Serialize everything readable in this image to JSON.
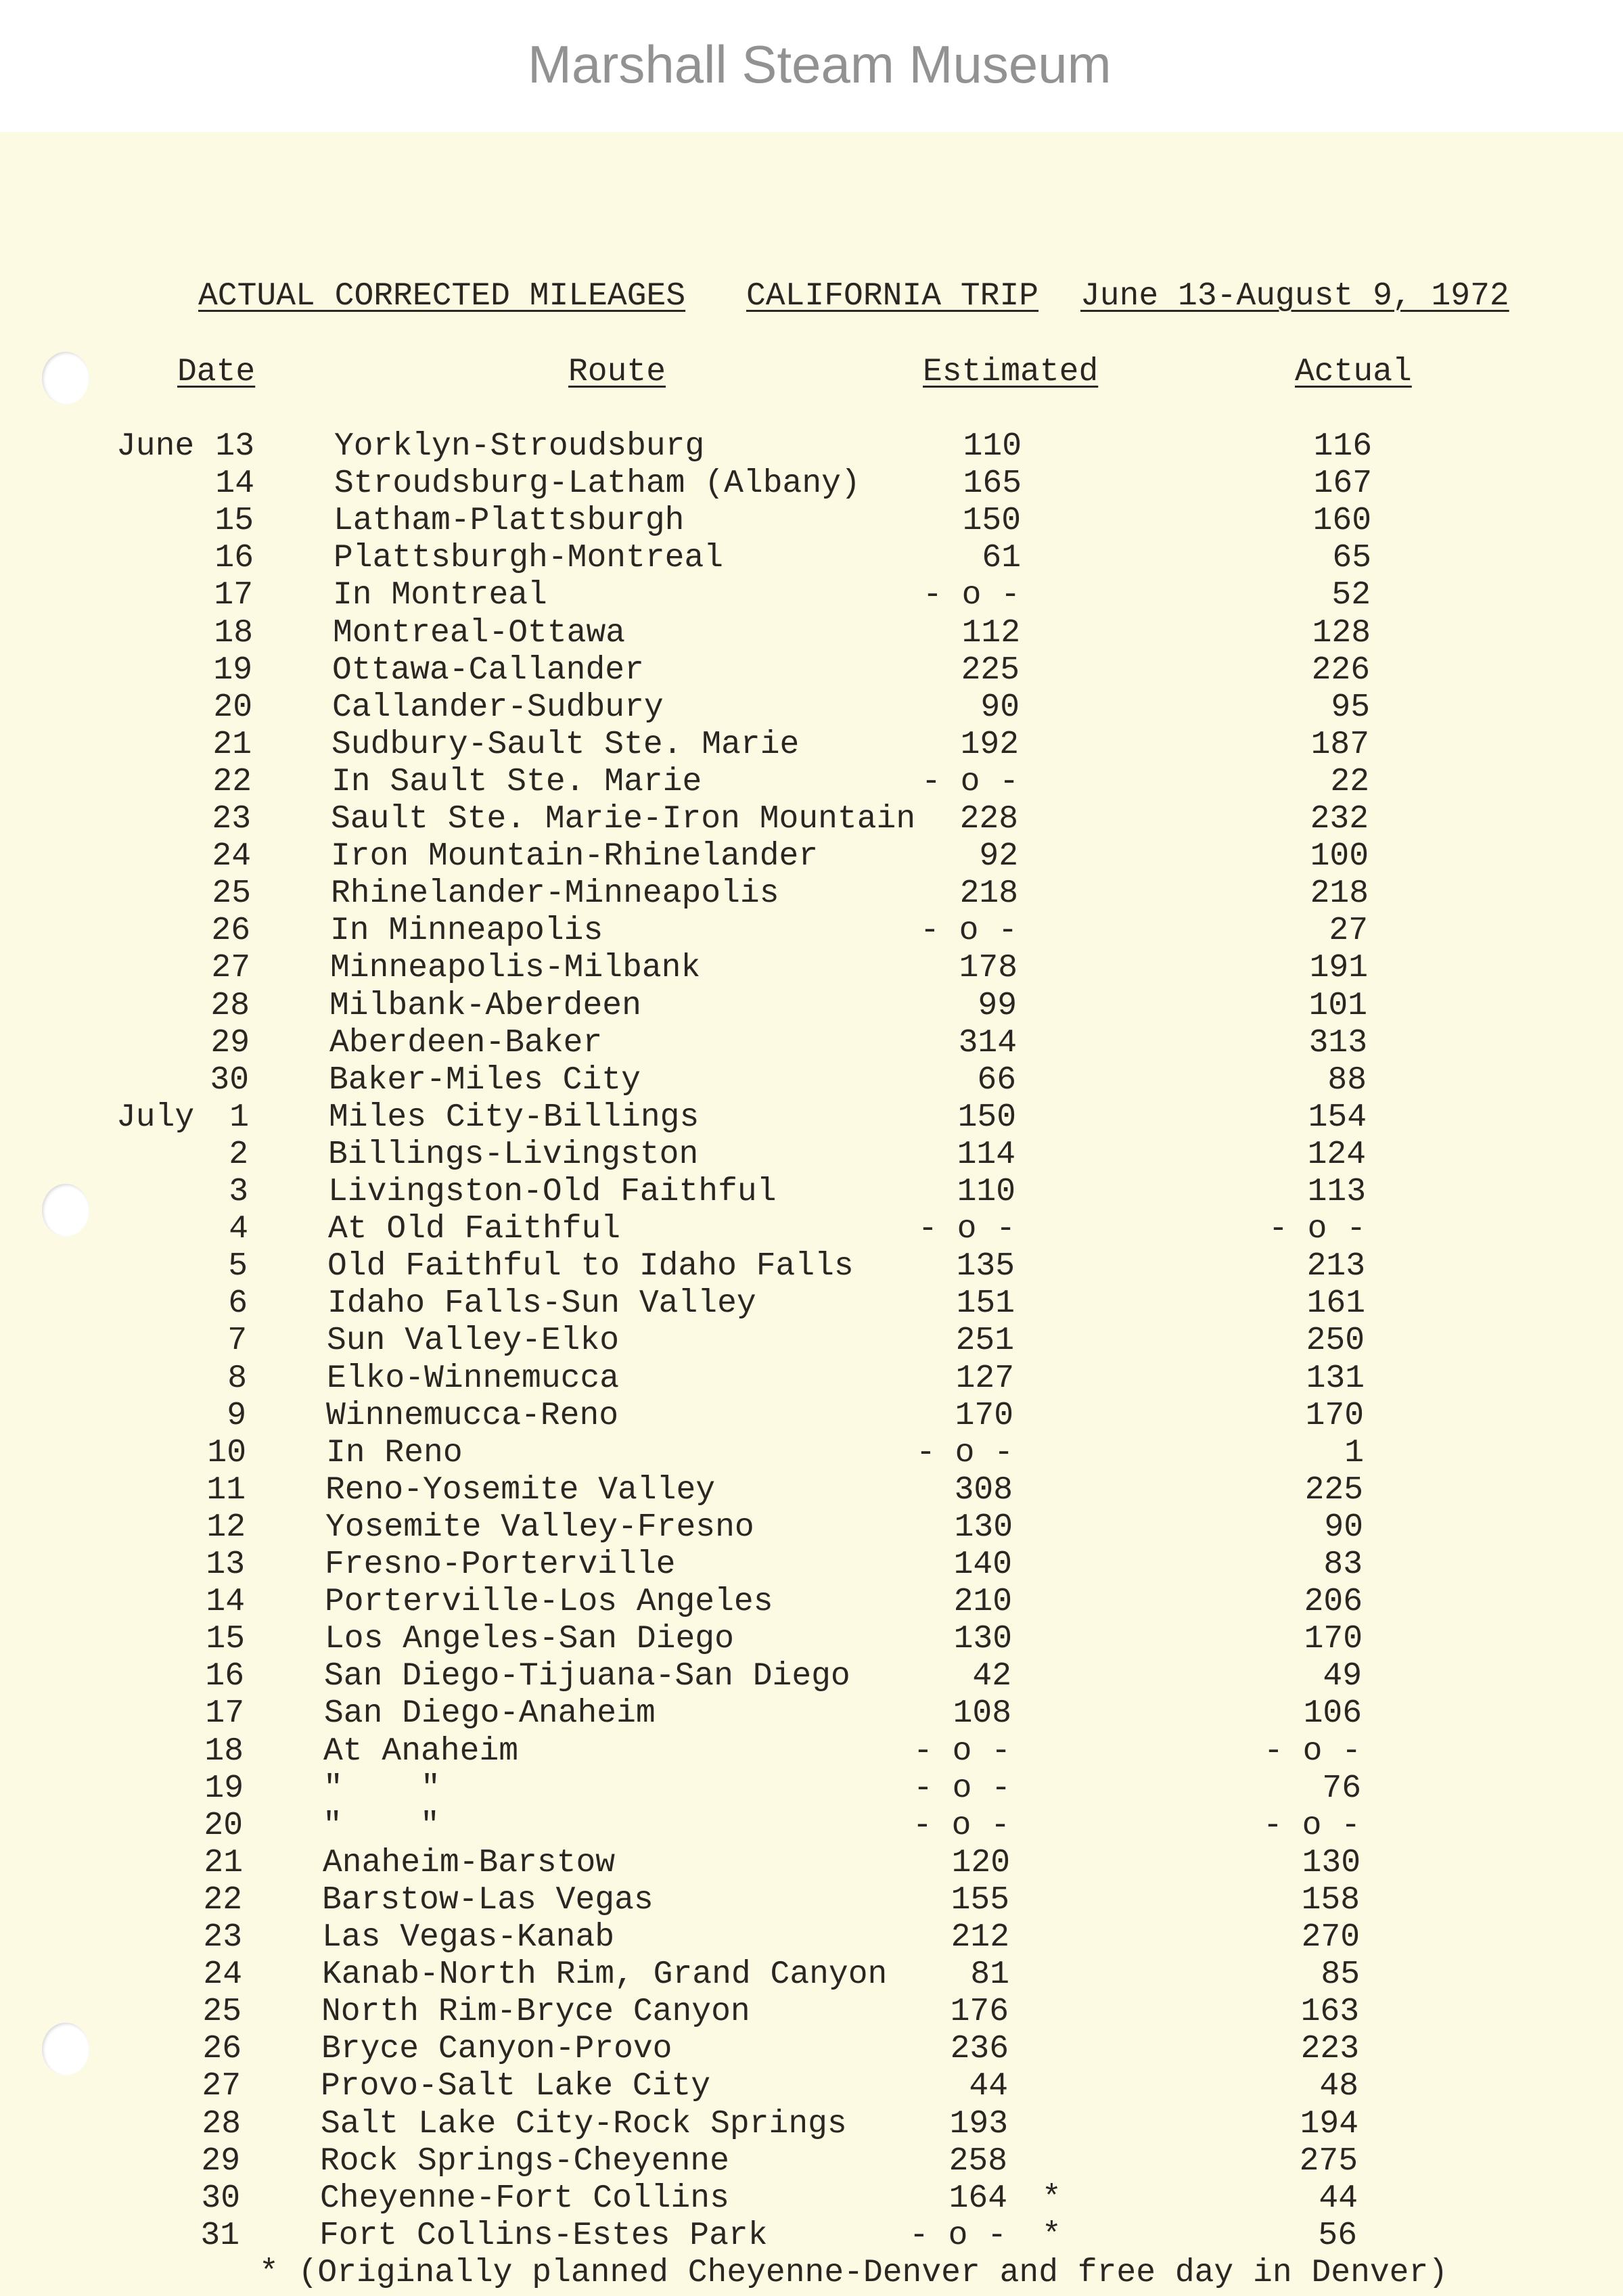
{
  "header": {
    "title_left": "ACTUAL CORRECTED MILEAGES",
    "title_mid": "CALIFORNIA TRIP",
    "title_right": "June 13-August 9, 1972"
  },
  "columns": {
    "date": "Date",
    "route": "Route",
    "estimated": "Estimated",
    "actual": "Actual"
  },
  "rows": [
    {
      "month": "June",
      "day": "13",
      "route": "Yorklyn-Stroudsburg",
      "estimated": "110",
      "actual": "116"
    },
    {
      "month": "",
      "day": "14",
      "route": "Stroudsburg-Latham (Albany)",
      "estimated": "165",
      "actual": "167"
    },
    {
      "month": "",
      "day": "15",
      "route": "Latham-Plattsburgh",
      "estimated": "150",
      "actual": "160"
    },
    {
      "month": "",
      "day": "16",
      "route": "Plattsburgh-Montreal",
      "estimated": "61",
      "actual": "65"
    },
    {
      "month": "",
      "day": "17",
      "route": "In Montreal",
      "estimated": "- o -",
      "actual": "52"
    },
    {
      "month": "",
      "day": "18",
      "route": "Montreal-Ottawa",
      "estimated": "112",
      "actual": "128"
    },
    {
      "month": "",
      "day": "19",
      "route": "Ottawa-Callander",
      "estimated": "225",
      "actual": "226"
    },
    {
      "month": "",
      "day": "20",
      "route": "Callander-Sudbury",
      "estimated": "90",
      "actual": "95"
    },
    {
      "month": "",
      "day": "21",
      "route": "Sudbury-Sault Ste. Marie",
      "estimated": "192",
      "actual": "187"
    },
    {
      "month": "",
      "day": "22",
      "route": "In Sault Ste. Marie",
      "estimated": "- o -",
      "actual": "22"
    },
    {
      "month": "",
      "day": "23",
      "route": "Sault Ste. Marie-Iron Mountain",
      "estimated": "228",
      "actual": "232"
    },
    {
      "month": "",
      "day": "24",
      "route": "Iron Mountain-Rhinelander",
      "estimated": "92",
      "actual": "100"
    },
    {
      "month": "",
      "day": "25",
      "route": "Rhinelander-Minneapolis",
      "estimated": "218",
      "actual": "218"
    },
    {
      "month": "",
      "day": "26",
      "route": "In Minneapolis",
      "estimated": "- o -",
      "actual": "27"
    },
    {
      "month": "",
      "day": "27",
      "route": "Minneapolis-Milbank",
      "estimated": "178",
      "actual": "191"
    },
    {
      "month": "",
      "day": "28",
      "route": "Milbank-Aberdeen",
      "estimated": "99",
      "actual": "101"
    },
    {
      "month": "",
      "day": "29",
      "route": "Aberdeen-Baker",
      "estimated": "314",
      "actual": "313"
    },
    {
      "month": "",
      "day": "30",
      "route": "Baker-Miles City",
      "estimated": "66",
      "actual": "88"
    },
    {
      "month": "July",
      "day": "1",
      "route": "Miles City-Billings",
      "estimated": "150",
      "actual": "154"
    },
    {
      "month": "",
      "day": "2",
      "route": "Billings-Livingston",
      "estimated": "114",
      "actual": "124"
    },
    {
      "month": "",
      "day": "3",
      "route": "Livingston-Old Faithful",
      "estimated": "110",
      "actual": "113"
    },
    {
      "month": "",
      "day": "4",
      "route": "At Old Faithful",
      "estimated": "- o -",
      "actual": "- o -"
    },
    {
      "month": "",
      "day": "5",
      "route": "Old Faithful to Idaho Falls",
      "estimated": "135",
      "actual": "213"
    },
    {
      "month": "",
      "day": "6",
      "route": "Idaho Falls-Sun Valley",
      "estimated": "151",
      "actual": "161"
    },
    {
      "month": "",
      "day": "7",
      "route": "Sun Valley-Elko",
      "estimated": "251",
      "actual": "250"
    },
    {
      "month": "",
      "day": "8",
      "route": "Elko-Winnemucca",
      "estimated": "127",
      "actual": "131"
    },
    {
      "month": "",
      "day": "9",
      "route": "Winnemucca-Reno",
      "estimated": "170",
      "actual": "170"
    },
    {
      "month": "",
      "day": "10",
      "route": "In Reno",
      "estimated": "- o -",
      "actual": "1"
    },
    {
      "month": "",
      "day": "11",
      "route": "Reno-Yosemite Valley",
      "estimated": "308",
      "actual": "225"
    },
    {
      "month": "",
      "day": "12",
      "route": "Yosemite Valley-Fresno",
      "estimated": "130",
      "actual": "90"
    },
    {
      "month": "",
      "day": "13",
      "route": "Fresno-Porterville",
      "estimated": "140",
      "actual": "83"
    },
    {
      "month": "",
      "day": "14",
      "route": "Porterville-Los Angeles",
      "estimated": "210",
      "actual": "206"
    },
    {
      "month": "",
      "day": "15",
      "route": "Los Angeles-San Diego",
      "estimated": "130",
      "actual": "170"
    },
    {
      "month": "",
      "day": "16",
      "route": "San Diego-Tijuana-San Diego",
      "estimated": "42",
      "actual": "49"
    },
    {
      "month": "",
      "day": "17",
      "route": "San Diego-Anaheim",
      "estimated": "108",
      "actual": "106"
    },
    {
      "month": "",
      "day": "18",
      "route": "At Anaheim",
      "estimated": "- o -",
      "actual": "- o -"
    },
    {
      "month": "",
      "day": "19",
      "route": "\"    \"",
      "estimated": "- o -",
      "actual": "76"
    },
    {
      "month": "",
      "day": "20",
      "route": "\"    \"",
      "estimated": "- o -",
      "actual": "- o -"
    },
    {
      "month": "",
      "day": "21",
      "route": "Anaheim-Barstow",
      "estimated": "120",
      "actual": "130"
    },
    {
      "month": "",
      "day": "22",
      "route": "Barstow-Las Vegas",
      "estimated": "155",
      "actual": "158"
    },
    {
      "month": "",
      "day": "23",
      "route": "Las Vegas-Kanab",
      "estimated": "212",
      "actual": "270"
    },
    {
      "month": "",
      "day": "24",
      "route": "Kanab-North Rim, Grand Canyon",
      "estimated": "81",
      "actual": "85"
    },
    {
      "month": "",
      "day": "25",
      "route": "North Rim-Bryce Canyon",
      "estimated": "176",
      "actual": "163"
    },
    {
      "month": "",
      "day": "26",
      "route": "Bryce Canyon-Provo",
      "estimated": "236",
      "actual": "223"
    },
    {
      "month": "",
      "day": "27",
      "route": "Provo-Salt Lake City",
      "estimated": "44",
      "actual": "48"
    },
    {
      "month": "",
      "day": "28",
      "route": "Salt Lake City-Rock Springs",
      "estimated": "193",
      "actual": "194"
    },
    {
      "month": "",
      "day": "29",
      "route": "Rock Springs-Cheyenne",
      "estimated": "258",
      "actual": "275"
    },
    {
      "month": "",
      "day": "30",
      "route": "Cheyenne-Fort Collins",
      "estimated": "164",
      "mark": "*",
      "actual": "44"
    },
    {
      "month": "",
      "day": "31",
      "route": "Fort Collins-Estes Park",
      "estimated": "- o -",
      "mark": "*",
      "actual": "56"
    }
  ],
  "footnote": "* (Originally planned Cheyenne-Denver and free day in Denver)",
  "watermark": "Marshall Steam Museum",
  "colors": {
    "paper": "#fcfae2",
    "ink": "#2a2622"
  }
}
